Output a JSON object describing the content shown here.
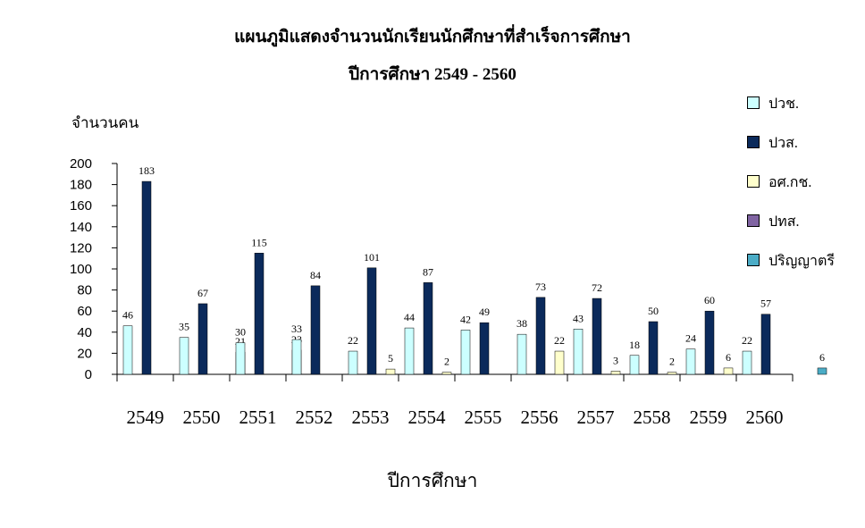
{
  "chart_data": {
    "type": "bar",
    "title": "แผนภูมิแสดงจำนวนนักเรียนนักศึกษาที่สำเร็จการศึกษา",
    "subtitle": "ปีการศึกษา 2549 - 2560",
    "xlabel": "ปีการศึกษา",
    "ylabel": "จำนวนคน",
    "ylim": [
      0,
      200
    ],
    "yticks": [
      0,
      20,
      40,
      60,
      80,
      100,
      120,
      140,
      160,
      180,
      200
    ],
    "categories": [
      "2549",
      "2550",
      "2551",
      "2552",
      "2553",
      "2554",
      "2555",
      "2556",
      "2557",
      "2558",
      "2559",
      "2560"
    ],
    "series": [
      {
        "name": "ปวช.",
        "color": "#ccffff",
        "values": [
          46,
          35,
          30,
          33,
          22,
          44,
          42,
          38,
          43,
          18,
          24,
          22
        ]
      },
      {
        "name": "ปวส.",
        "color": "#0b2a5b",
        "values": [
          183,
          67,
          115,
          84,
          101,
          87,
          49,
          73,
          72,
          50,
          60,
          57
        ]
      },
      {
        "name": "อศ.กช.",
        "color": "#ffffcc",
        "values": [
          null,
          null,
          null,
          null,
          5,
          2,
          null,
          22,
          3,
          2,
          6,
          null
        ]
      },
      {
        "name": "ปทส.",
        "color": "#8064a2",
        "values": [
          0,
          21,
          23,
          0,
          0,
          null,
          null,
          null,
          null,
          null,
          null,
          null
        ]
      },
      {
        "name": "ปริญญาตรี",
        "color": "#4bacc6",
        "values": [
          null,
          null,
          null,
          null,
          null,
          null,
          null,
          null,
          null,
          null,
          null,
          6
        ]
      }
    ],
    "grid": false,
    "legend_position": "right"
  }
}
